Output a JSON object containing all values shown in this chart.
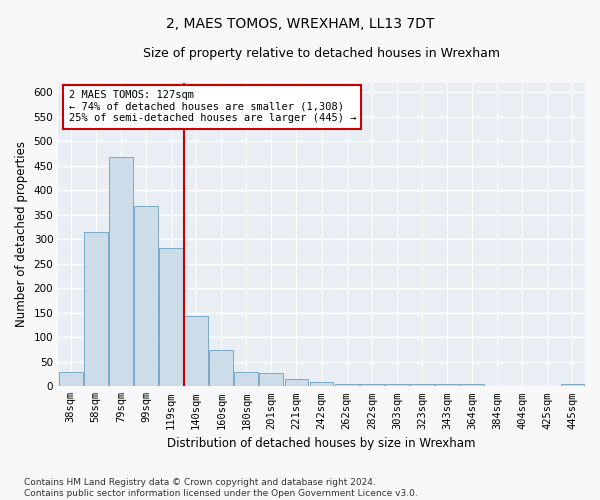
{
  "title": "2, MAES TOMOS, WREXHAM, LL13 7DT",
  "subtitle": "Size of property relative to detached houses in Wrexham",
  "xlabel": "Distribution of detached houses by size in Wrexham",
  "ylabel": "Number of detached properties",
  "categories": [
    "38sqm",
    "58sqm",
    "79sqm",
    "99sqm",
    "119sqm",
    "140sqm",
    "160sqm",
    "180sqm",
    "201sqm",
    "221sqm",
    "242sqm",
    "262sqm",
    "282sqm",
    "303sqm",
    "323sqm",
    "343sqm",
    "364sqm",
    "384sqm",
    "404sqm",
    "425sqm",
    "445sqm"
  ],
  "values": [
    30,
    315,
    467,
    368,
    283,
    143,
    75,
    30,
    27,
    15,
    8,
    5,
    4,
    4,
    4,
    4,
    4,
    0,
    0,
    0,
    5
  ],
  "bar_color": "#ccdce8",
  "bar_edge_color": "#7aaac8",
  "property_line_x": 4.5,
  "property_line_color": "#cc0000",
  "annotation_line1": "2 MAES TOMOS: 127sqm",
  "annotation_line2": "← 74% of detached houses are smaller (1,308)",
  "annotation_line3": "25% of semi-detached houses are larger (445) →",
  "annotation_box_color": "#ffffff",
  "annotation_box_edge_color": "#cc0000",
  "ylim": [
    0,
    620
  ],
  "yticks": [
    0,
    50,
    100,
    150,
    200,
    250,
    300,
    350,
    400,
    450,
    500,
    550,
    600
  ],
  "footer_text": "Contains HM Land Registry data © Crown copyright and database right 2024.\nContains public sector information licensed under the Open Government Licence v3.0.",
  "fig_background_color": "#f8f8f8",
  "plot_background_color": "#e8eef4",
  "grid_color": "#ffffff",
  "title_fontsize": 10,
  "subtitle_fontsize": 9,
  "axis_label_fontsize": 8.5,
  "tick_fontsize": 7.5,
  "annotation_fontsize": 7.5,
  "footer_fontsize": 6.5
}
